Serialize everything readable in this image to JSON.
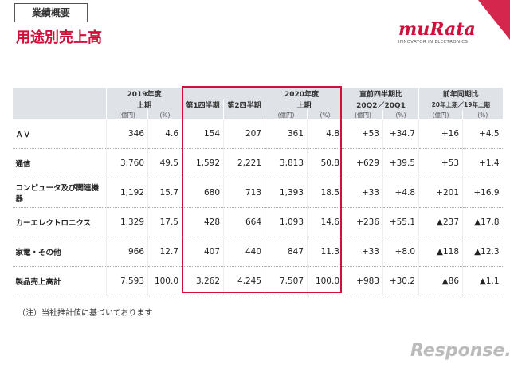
{
  "header": {
    "badge": "業績概要",
    "title": "用途別売上高",
    "logo": "muRata",
    "tagline": "INNOVATOR IN ELECTRONICS"
  },
  "table": {
    "groups": [
      "2019年度",
      "2020年度",
      "直前四半期比",
      "前年同期比"
    ],
    "subheads": [
      "上期",
      "第1四半期",
      "第2四半期",
      "上期",
      "20Q2／20Q1",
      "20年上期／19年上期"
    ],
    "units": [
      "(億円)",
      "(%)",
      "(億円)",
      "(%)",
      "(億円)",
      "(%)",
      "(億円)",
      "(%)"
    ],
    "rows": [
      {
        "label": "ＡＶ",
        "cells": [
          "346",
          "4.6",
          "154",
          "207",
          "361",
          "4.8",
          "+53",
          "+34.7",
          "+16",
          "+4.5"
        ]
      },
      {
        "label": "通信",
        "cells": [
          "3,760",
          "49.5",
          "1,592",
          "2,221",
          "3,813",
          "50.8",
          "+629",
          "+39.5",
          "+53",
          "+1.4"
        ]
      },
      {
        "label": "コンピュータ及び関連機器",
        "cells": [
          "1,192",
          "15.7",
          "680",
          "713",
          "1,393",
          "18.5",
          "+33",
          "+4.8",
          "+201",
          "+16.9"
        ]
      },
      {
        "label": "カーエレクトロニクス",
        "cells": [
          "1,329",
          "17.5",
          "428",
          "664",
          "1,093",
          "14.6",
          "+236",
          "+55.1",
          "▲237",
          "▲17.8"
        ]
      },
      {
        "label": "家電・その他",
        "cells": [
          "966",
          "12.7",
          "407",
          "440",
          "847",
          "11.3",
          "+33",
          "+8.0",
          "▲118",
          "▲12.3"
        ]
      },
      {
        "label": "製品売上高計",
        "cells": [
          "7,593",
          "100.0",
          "3,262",
          "4,245",
          "7,507",
          "100.0",
          "+983",
          "+30.2",
          "▲86",
          "▲1.1"
        ]
      }
    ]
  },
  "footer": {
    "note": "（注）当社推計値に基づいております",
    "watermark": "Response."
  }
}
